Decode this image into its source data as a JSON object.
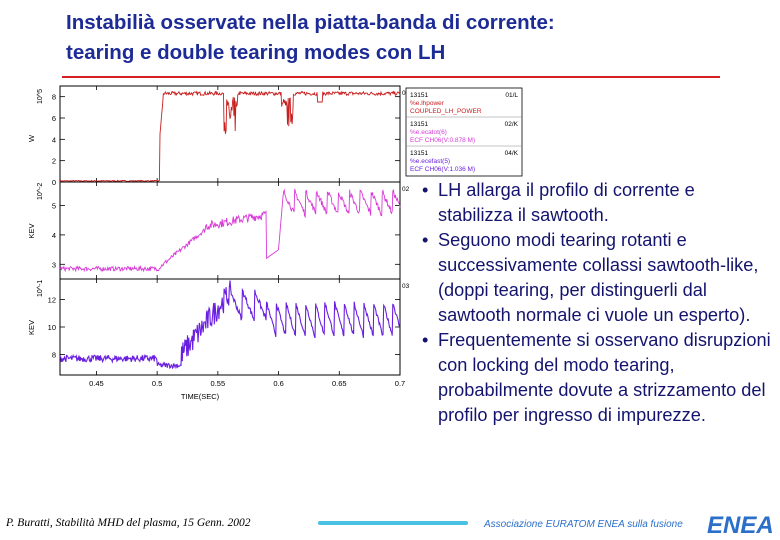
{
  "slide": {
    "title_line1": "Instabilià osservate nella piatta-banda di corrente:",
    "title_line2": "tearing e double tearing modes con LH",
    "bullets": [
      "LH allarga il profilo di corrente e stabilizza il sawtooth.",
      "Seguono modi tearing rotanti e successivamente collassi sawtooth-like, (doppi tearing, per distinguerli dal sawtooth normale ci vuole un esperto).",
      "Frequentemente si osservano disrupzioni con locking del modo tearing, probabilmente dovute a strizzamento del profilo per ingresso di impurezze."
    ],
    "footer_author": "P. Buratti, Stabilità MHD del plasma, 15 Genn. 2002",
    "footer_assoc": "Associazione EURATOM ENEA sulla fusione",
    "logo_text": "ENEA",
    "colors": {
      "title": "#1d2b96",
      "rule": "#d42020",
      "text": "#14146e",
      "accent_bar": "#49c2e6",
      "logo": "#2b6fc9"
    }
  },
  "chart_data": {
    "type": "line",
    "x_label": "TIME(SEC)",
    "x_ticks": [
      "0.45",
      "0.5",
      "0.55",
      "0.6",
      "0.65",
      "0.7"
    ],
    "xlim": [
      0.42,
      0.7
    ],
    "panels": [
      {
        "ylabel": "W",
        "exponent": "10^5",
        "yticks": [
          "0",
          "2",
          "4",
          "6",
          "8"
        ],
        "ylim": [
          0,
          9
        ],
        "corner_label": "01",
        "color": "#c81e1e",
        "legend": [
          "13151",
          "01/L",
          "%e.lhpower",
          "COUPLED_LH_POWER"
        ]
      },
      {
        "ylabel": "KEV",
        "exponent": "10^-2",
        "yticks": [
          "3",
          "4",
          "5"
        ],
        "ylim": [
          2.5,
          5.8
        ],
        "corner_label": "02",
        "color": "#d83ad8",
        "legend": [
          "13151",
          "02/K",
          "%e.ecatot(6)",
          "ECF CH06(V:0.878 M)"
        ]
      },
      {
        "ylabel": "KEV",
        "exponent": "10^-1",
        "yticks": [
          "8",
          "10",
          "12"
        ],
        "ylim": [
          6.5,
          13.5
        ],
        "corner_label": "03",
        "color": "#6a1fe0",
        "legend": [
          "13151",
          "04/K",
          "%e.ecefast(5)",
          "ECF CH06(V:1.036 M)"
        ]
      }
    ]
  }
}
